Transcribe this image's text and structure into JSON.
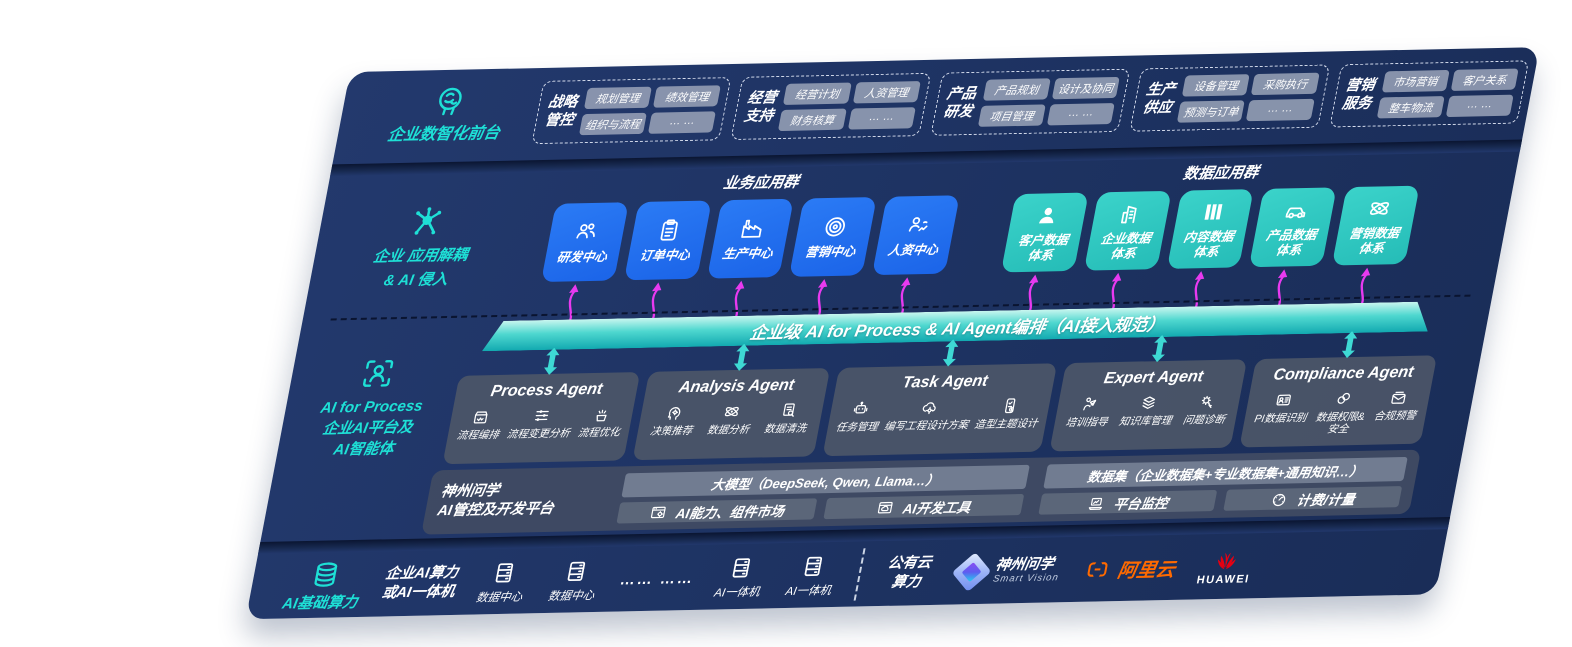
{
  "colors": {
    "panel_navy": "#1d3261",
    "accent_teal": "#1ee0d6",
    "tile_blue": "#1f6ef0",
    "tile_teal": "#2fc8c1",
    "band_teal_gradient_top": "#c9f6ef",
    "band_teal_gradient_bottom": "#12a9b0",
    "agent_box_gray": "#4a5468",
    "arrow_magenta": "#e83af0",
    "alibaba_orange": "#ff6a00",
    "huawei_red": "#e60012"
  },
  "front_office": {
    "label": "企业数智化前台",
    "icon": "brain",
    "groups": [
      {
        "title": [
          "战略",
          "管控"
        ],
        "items": [
          "规划管理",
          "绩效管理",
          "组织与流程",
          "… …"
        ]
      },
      {
        "title": [
          "经营",
          "支持"
        ],
        "items": [
          "经营计划",
          "人资管理",
          "财务核算",
          "… …"
        ]
      },
      {
        "title": [
          "产品",
          "研发"
        ],
        "items": [
          "产品规划",
          "设计及协同",
          "项目管理",
          "… …"
        ]
      },
      {
        "title": [
          "生产",
          "供应"
        ],
        "items": [
          "设备管理",
          "采购执行",
          "预测与订单",
          "… …"
        ]
      },
      {
        "title": [
          "营销",
          "服务"
        ],
        "items": [
          "市场营销",
          "客户关系",
          "整车物流",
          "… …"
        ]
      }
    ]
  },
  "application_layer": {
    "label_line1": "企业 应用解耦",
    "label_line2": "& AI 侵入",
    "icon": "molecule",
    "business": {
      "heading": "业务应用群",
      "tiles": [
        {
          "label": "研发中心",
          "icon": "team"
        },
        {
          "label": "订单中心",
          "icon": "clipboard"
        },
        {
          "label": "生产中心",
          "icon": "factory"
        },
        {
          "label": "营销中心",
          "icon": "target"
        },
        {
          "label": "人资中心",
          "icon": "hr"
        }
      ]
    },
    "data": {
      "heading": "数据应用群",
      "tiles": [
        {
          "label": "客户数据\n体系",
          "icon": "customer"
        },
        {
          "label": "企业数据\n体系",
          "icon": "building"
        },
        {
          "label": "内容数据\n体系",
          "icon": "content"
        },
        {
          "label": "产品数据\n体系",
          "icon": "car"
        },
        {
          "label": "营销数据\n体系",
          "icon": "atom"
        }
      ]
    }
  },
  "ai_band": {
    "label": "企业级 AI for Process & AI Agent编排（AI接入规范）"
  },
  "agents_section": {
    "label_en": "AI for Process",
    "label_zh_line1": "企业AI平台及",
    "label_zh_line2": "AI智能体",
    "icon": "person-frame",
    "agents": [
      {
        "title": "Process Agent",
        "wide": false,
        "capabilities": [
          {
            "label": "流程编排",
            "icon": "box-flow"
          },
          {
            "label": "流程变更分析",
            "icon": "sliders"
          },
          {
            "label": "流程优化",
            "icon": "burst"
          }
        ]
      },
      {
        "title": "Analysis Agent",
        "wide": false,
        "capabilities": [
          {
            "label": "决策推荐",
            "icon": "head-gear"
          },
          {
            "label": "数据分析",
            "icon": "atom"
          },
          {
            "label": "数据清洗",
            "icon": "doc-data"
          }
        ]
      },
      {
        "title": "Task Agent",
        "wide": true,
        "capabilities": [
          {
            "label": "任务管理",
            "icon": "robot"
          },
          {
            "label": "编写工程设计方案",
            "icon": "cloud-gear"
          },
          {
            "label": "造型主题设计",
            "icon": "checklist"
          }
        ]
      },
      {
        "title": "Expert Agent",
        "wide": false,
        "capabilities": [
          {
            "label": "培训指导",
            "icon": "training"
          },
          {
            "label": "知识库管理",
            "icon": "layers"
          },
          {
            "label": "问题诊断",
            "icon": "diagnose"
          }
        ]
      },
      {
        "title": "Compliance Agent",
        "wide": false,
        "capabilities": [
          {
            "label": "PI数据识别",
            "icon": "id-card"
          },
          {
            "label": "数据权限&\n安全",
            "icon": "link-lock"
          },
          {
            "label": "合规预警",
            "icon": "mail-alert"
          }
        ]
      }
    ]
  },
  "platform": {
    "label_line1": "神州问学",
    "label_line2": "AI管控及开发平台",
    "groups": [
      {
        "header": "大模型（DeepSeek, Qwen, Llama…）",
        "buttons": [
          {
            "label": "AI能力、组件市场",
            "icon": "window-gear"
          },
          {
            "label": "AI开发工具",
            "icon": "window-cloud"
          }
        ]
      },
      {
        "header": "数据集（企业数据集+专业数据集+通用知识…）",
        "buttons": [
          {
            "label": "平台监控",
            "icon": "laptop-chart"
          },
          {
            "label": "计费/计量",
            "icon": "gauge"
          }
        ]
      }
    ]
  },
  "infrastructure": {
    "label": "AI基础算力",
    "icon": "database",
    "compute_line1": "企业AI算力",
    "compute_line2": "或AI一体机",
    "data_centers": [
      "数据中心",
      "数据中心"
    ],
    "dots": "…… ……",
    "ai_boxes": [
      "AI一体机",
      "AI一体机"
    ],
    "public_cloud_line1": "公有云",
    "public_cloud_line2": "算力",
    "logos": {
      "shenzhou_name": "神州问学",
      "shenzhou_sub": "Smart Vision",
      "alibaba": "阿里云",
      "huawei": "HUAWEI"
    }
  }
}
